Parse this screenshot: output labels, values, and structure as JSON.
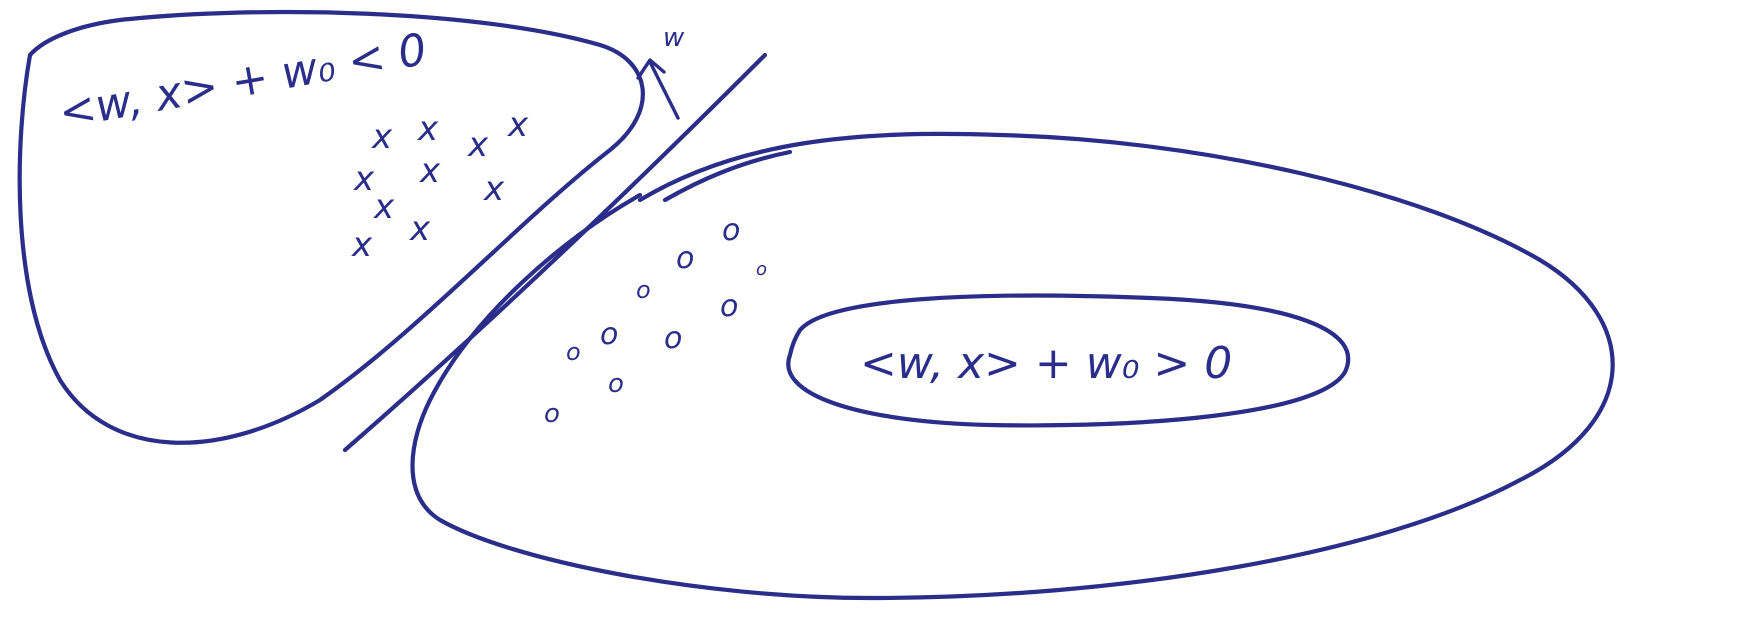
{
  "labels": {
    "negative_region": "<w, x> + w₀ < 0",
    "positive_region": "<w, x> + w₀ > 0",
    "normal_vector": "w"
  },
  "markers": {
    "negative_class": "x",
    "positive_class": "o"
  },
  "colors": {
    "ink": "#2b2d8a",
    "background": "#ffffff"
  }
}
